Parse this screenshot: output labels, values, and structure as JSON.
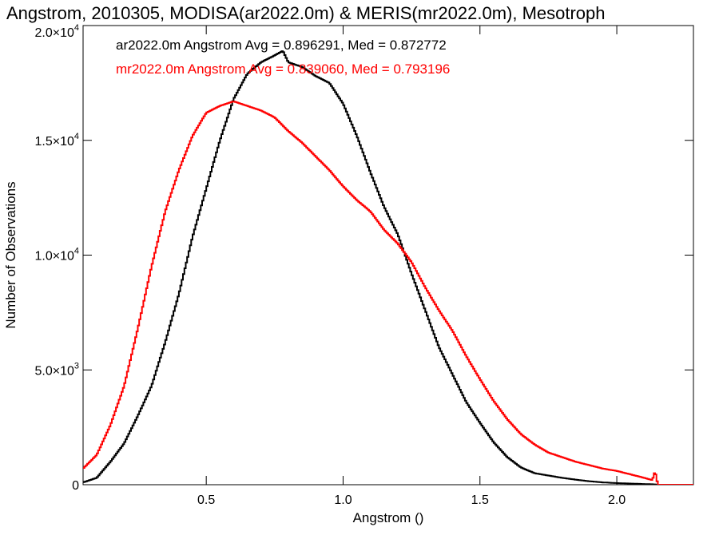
{
  "chart_data": {
    "type": "line",
    "title": "Angstrom, 2010305, MODISA(ar2022.0m) & MERIS(mr2022.0m), Mesotroph",
    "xlabel": "Angstrom ()",
    "ylabel": "Number of Observations",
    "xlim": [
      0.05,
      2.28
    ],
    "ylim": [
      0,
      20000
    ],
    "grid": false,
    "x_ticks": [
      {
        "value": 0.5,
        "label": "0.5"
      },
      {
        "value": 1.0,
        "label": "1.0"
      },
      {
        "value": 1.5,
        "label": "1.5"
      },
      {
        "value": 2.0,
        "label": "2.0"
      }
    ],
    "y_ticks": [
      {
        "value": 0,
        "mant": "0",
        "exp": ""
      },
      {
        "value": 5000,
        "mant": "5.0×10",
        "exp": "3"
      },
      {
        "value": 10000,
        "mant": "1.0×10",
        "exp": "4"
      },
      {
        "value": 15000,
        "mant": "1.5×10",
        "exp": "4"
      },
      {
        "value": 20000,
        "mant": "2.0×10",
        "exp": "4"
      }
    ],
    "legend_position": "top-left",
    "series": [
      {
        "name": "ar2022.0m",
        "legend": "ar2022.0m Angstrom Avg = 0.896291, Med = 0.872772",
        "color": "#000000",
        "x": [
          0.05,
          0.1,
          0.15,
          0.2,
          0.25,
          0.3,
          0.35,
          0.4,
          0.45,
          0.5,
          0.55,
          0.6,
          0.65,
          0.7,
          0.75,
          0.78,
          0.8,
          0.85,
          0.9,
          0.95,
          1.0,
          1.05,
          1.1,
          1.15,
          1.2,
          1.25,
          1.3,
          1.35,
          1.4,
          1.45,
          1.5,
          1.55,
          1.6,
          1.65,
          1.7,
          1.75,
          1.8,
          1.85,
          1.9,
          1.95,
          2.0,
          2.05,
          2.1,
          2.13,
          2.15,
          2.2,
          2.28
        ],
        "y": [
          100,
          300,
          1000,
          1800,
          3000,
          4300,
          6200,
          8300,
          10800,
          12900,
          15000,
          16800,
          17900,
          18400,
          18700,
          18900,
          18400,
          18200,
          17800,
          17500,
          16600,
          15200,
          13600,
          12100,
          10900,
          9200,
          7600,
          6000,
          4800,
          3600,
          2700,
          1850,
          1200,
          750,
          500,
          400,
          300,
          220,
          150,
          100,
          70,
          50,
          30,
          20,
          0,
          0,
          0
        ]
      },
      {
        "name": "mr2022.0m",
        "legend": "mr2022.0m Angstrom Avg = 0.839060, Med = 0.793196",
        "color": "#ff0000",
        "x": [
          0.05,
          0.1,
          0.15,
          0.2,
          0.25,
          0.3,
          0.35,
          0.4,
          0.45,
          0.5,
          0.55,
          0.6,
          0.65,
          0.7,
          0.75,
          0.8,
          0.85,
          0.9,
          0.95,
          1.0,
          1.05,
          1.1,
          1.15,
          1.2,
          1.25,
          1.3,
          1.35,
          1.4,
          1.45,
          1.5,
          1.55,
          1.6,
          1.65,
          1.7,
          1.75,
          1.8,
          1.85,
          1.9,
          1.95,
          2.0,
          2.05,
          2.1,
          2.13,
          2.14,
          2.15,
          2.2,
          2.28
        ],
        "y": [
          700,
          1300,
          2600,
          4300,
          6800,
          9500,
          11900,
          13700,
          15200,
          16200,
          16500,
          16700,
          16500,
          16300,
          16000,
          15400,
          14900,
          14300,
          13700,
          13000,
          12400,
          11900,
          11100,
          10500,
          9700,
          8600,
          7600,
          6700,
          5600,
          4600,
          3650,
          2850,
          2200,
          1750,
          1400,
          1200,
          1000,
          850,
          700,
          600,
          450,
          300,
          200,
          600,
          0,
          0,
          0
        ]
      }
    ]
  }
}
